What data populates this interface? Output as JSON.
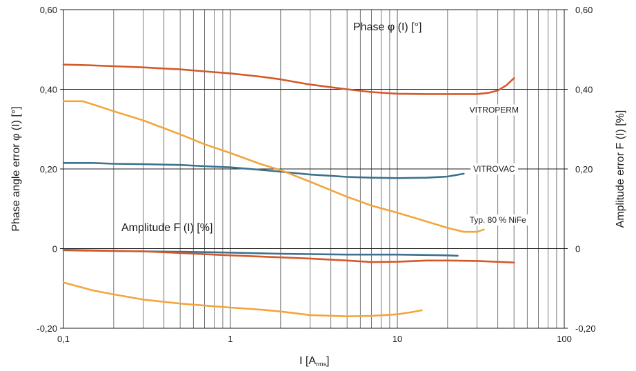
{
  "chart_data": {
    "type": "line",
    "xlabel": "I [A",
    "xlabel_sub": "rms",
    "xlabel_close": "]",
    "ylabel_left": "Phase angle error φ (I) [°]",
    "ylabel_right": "Amplitude error F (I) [%]",
    "x_scale": "log",
    "xlim": [
      0.1,
      100
    ],
    "ylim": [
      -0.2,
      0.6
    ],
    "x_ticks": [
      {
        "value": 0.1,
        "label": "0,1"
      },
      {
        "value": 1,
        "label": "1"
      },
      {
        "value": 10,
        "label": "10"
      },
      {
        "value": 100,
        "label": "100"
      }
    ],
    "y_ticks_left": [
      {
        "value": 0.6,
        "label": "0,60"
      },
      {
        "value": 0.4,
        "label": "0,40"
      },
      {
        "value": 0.2,
        "label": "0,20"
      },
      {
        "value": 0,
        "label": "0"
      },
      {
        "value": -0.2,
        "label": "-0,20"
      }
    ],
    "y_ticks_right": [
      {
        "value": 0.6,
        "label": "0,60"
      },
      {
        "value": 0.4,
        "label": "0,40"
      },
      {
        "value": 0.2,
        "label": "0,20"
      },
      {
        "value": 0,
        "label": "0"
      },
      {
        "value": -0.2,
        "label": "-0,20"
      }
    ],
    "grid": {
      "vertical": true,
      "horizontal_at": [
        0.4,
        0.2,
        0
      ]
    },
    "annotations": {
      "phase": "Phase φ (I) [°]",
      "amplitude": "Amplitude F (I) [%]"
    },
    "series": [
      {
        "name": "VITROPERM",
        "group": "phase",
        "color": "#d4592a",
        "x": [
          0.1,
          0.13,
          0.2,
          0.3,
          0.5,
          0.7,
          1,
          1.5,
          2,
          3,
          5,
          7,
          10,
          15,
          20,
          30,
          35,
          40,
          45,
          50
        ],
        "y": [
          0.462,
          0.461,
          0.458,
          0.455,
          0.45,
          0.445,
          0.44,
          0.432,
          0.425,
          0.412,
          0.4,
          0.393,
          0.389,
          0.388,
          0.388,
          0.388,
          0.391,
          0.397,
          0.41,
          0.428
        ]
      },
      {
        "name": "VITROVAC",
        "group": "phase",
        "color": "#3d7190",
        "x": [
          0.1,
          0.15,
          0.2,
          0.3,
          0.5,
          0.7,
          1,
          1.5,
          2,
          3,
          5,
          7,
          10,
          15,
          20,
          25
        ],
        "y": [
          0.215,
          0.215,
          0.213,
          0.212,
          0.21,
          0.207,
          0.204,
          0.198,
          0.193,
          0.186,
          0.18,
          0.178,
          0.177,
          0.178,
          0.181,
          0.188
        ]
      },
      {
        "name": "Typ. 80 % NiFe",
        "group": "phase",
        "color": "#f2a53c",
        "x": [
          0.1,
          0.13,
          0.15,
          0.2,
          0.3,
          0.5,
          0.7,
          1,
          1.5,
          2,
          3,
          5,
          7,
          10,
          15,
          20,
          25,
          30,
          33
        ],
        "y": [
          0.37,
          0.37,
          0.362,
          0.345,
          0.322,
          0.287,
          0.262,
          0.24,
          0.213,
          0.197,
          0.168,
          0.13,
          0.108,
          0.09,
          0.068,
          0.052,
          0.042,
          0.042,
          0.048
        ]
      },
      {
        "name": "VITROVAC amplitude",
        "group": "amplitude",
        "color": "#3d7190",
        "x": [
          0.1,
          0.2,
          0.5,
          1,
          2,
          5,
          10,
          20,
          23
        ],
        "y": [
          -0.004,
          -0.006,
          -0.008,
          -0.01,
          -0.013,
          -0.015,
          -0.015,
          -0.017,
          -0.018
        ]
      },
      {
        "name": "VITROPERM amplitude",
        "group": "amplitude",
        "color": "#d4592a",
        "x": [
          0.1,
          0.3,
          0.5,
          1,
          2,
          3,
          5,
          7,
          10,
          15,
          20,
          30,
          50
        ],
        "y": [
          -0.003,
          -0.007,
          -0.011,
          -0.017,
          -0.022,
          -0.025,
          -0.03,
          -0.034,
          -0.033,
          -0.03,
          -0.03,
          -0.031,
          -0.035
        ]
      },
      {
        "name": "NiFe amplitude",
        "group": "amplitude",
        "color": "#f2a53c",
        "x": [
          0.1,
          0.15,
          0.2,
          0.3,
          0.5,
          0.7,
          1,
          1.5,
          2,
          3,
          5,
          7,
          10,
          12,
          14
        ],
        "y": [
          -0.085,
          -0.105,
          -0.115,
          -0.128,
          -0.138,
          -0.143,
          -0.148,
          -0.153,
          -0.158,
          -0.167,
          -0.17,
          -0.169,
          -0.165,
          -0.16,
          -0.155
        ]
      }
    ],
    "series_labels": [
      {
        "text": "VITROPERM",
        "x": 38,
        "y": 0.348
      },
      {
        "text": "VITROVAC",
        "x": 38,
        "y": 0.2
      },
      {
        "text": "Typ. 80 % NiFe",
        "x": 40,
        "y": 0.072
      }
    ]
  }
}
